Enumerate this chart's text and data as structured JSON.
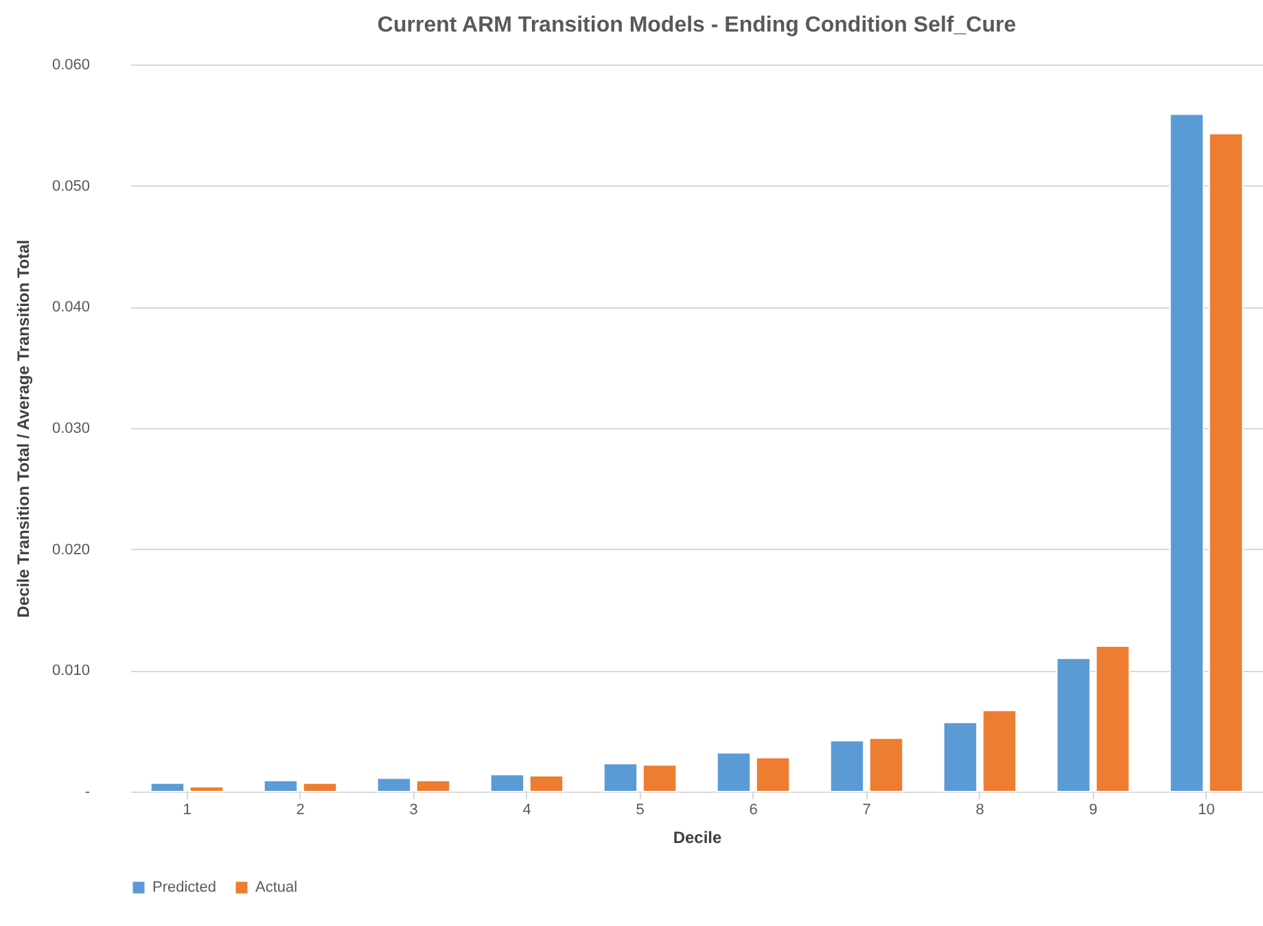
{
  "chart_data": {
    "type": "bar",
    "title": "Current ARM Transition Models -  Ending Condition Self_Cure",
    "xlabel": "Decile",
    "ylabel": "Decile Transition Total / Average Transition Total",
    "categories": [
      "1",
      "2",
      "3",
      "4",
      "5",
      "6",
      "7",
      "8",
      "9",
      "10"
    ],
    "series": [
      {
        "name": "Predicted",
        "color": "#5b9bd5",
        "values": [
          0.0007,
          0.0009,
          0.0011,
          0.0014,
          0.0023,
          0.0032,
          0.0042,
          0.0057,
          0.011,
          0.0559
        ]
      },
      {
        "name": "Actual",
        "color": "#ed7d31",
        "values": [
          0.0004,
          0.0007,
          0.0009,
          0.0013,
          0.0022,
          0.0028,
          0.0044,
          0.0067,
          0.012,
          0.0543
        ]
      }
    ],
    "ylim": [
      0,
      0.06
    ],
    "yticks": [
      {
        "value": 0,
        "label": "-"
      },
      {
        "value": 0.01,
        "label": "0.010"
      },
      {
        "value": 0.02,
        "label": "0.020"
      },
      {
        "value": 0.03,
        "label": "0.030"
      },
      {
        "value": 0.04,
        "label": "0.040"
      },
      {
        "value": 0.05,
        "label": "0.050"
      },
      {
        "value": 0.06,
        "label": "0.060"
      }
    ],
    "grid": "y",
    "legend": "bottom"
  }
}
